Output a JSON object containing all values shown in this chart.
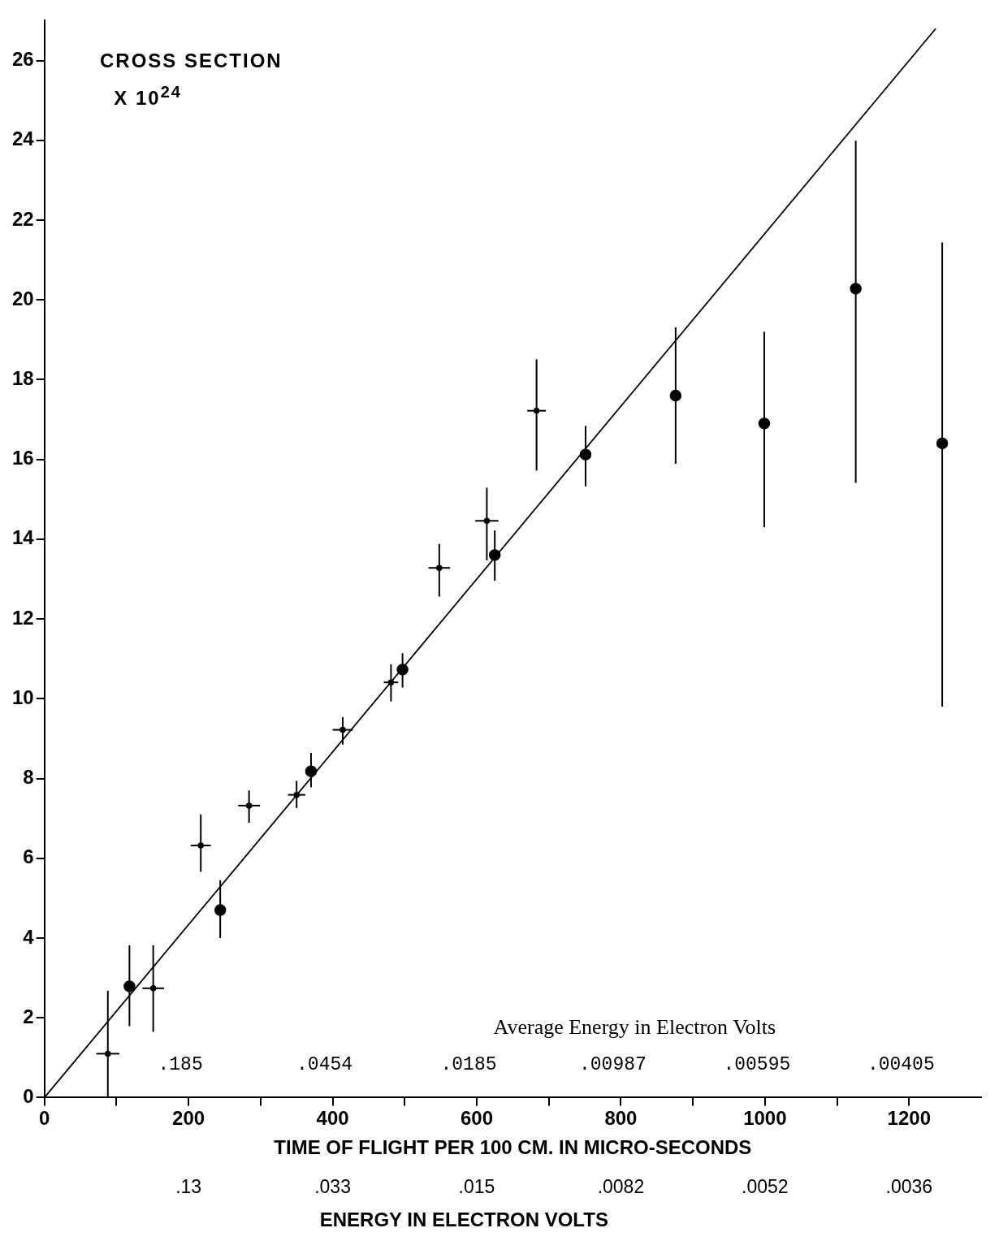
{
  "chart_data": {
    "type": "scatter",
    "ylabel": "CROSS SECTION X 10$^{24}$",
    "xlabel": "TIME OF FLIGHT PER 100 CM. IN MICRO-SECONDS",
    "annotations": [
      "Average Energy in Electron Volts",
      ".185 .0454 .0185 .00987 .00595 .00405",
      ".13 .033 .015 .0082 .0052 .0036",
      "ENERGY IN ELECTRON VOLTS"
    ],
    "xlim": [
      0,
      1300
    ],
    "xticks": [
      0,
      {
        "value": 100,
        "label": null
      },
      200,
      {
        "value": 300,
        "label": null
      },
      400,
      {
        "value": 500,
        "label": null
      },
      600,
      {
        "value": 700,
        "label": null
      },
      800,
      {
        "value": 900,
        "label": null
      },
      1000,
      {
        "value": 1100,
        "label": null
      },
      1200
    ],
    "ylim": [
      0,
      27
    ],
    "yticks": [
      0,
      2,
      4,
      6,
      8,
      10,
      12,
      14,
      16,
      18,
      20,
      22,
      24,
      26
    ],
    "grid": false,
    "legend": false,
    "series": [
      {
        "color": "#000000",
        "marker": "circle",
        "x": [
          118,
          244,
          370,
          497,
          625,
          751,
          876,
          999,
          1126,
          1246
        ],
        "values": [
          2.79,
          4.7,
          8.18,
          10.73,
          13.6,
          16.12,
          17.6,
          16.9,
          20.28,
          16.4
        ],
        "errors": [
          [
            1.79,
            3.82
          ],
          [
            4.0,
            5.45
          ],
          [
            7.78,
            8.64
          ],
          [
            10.28,
            11.14
          ],
          [
            12.96,
            14.22
          ],
          [
            15.32,
            16.84
          ],
          [
            15.89,
            19.31
          ],
          [
            14.3,
            19.2
          ],
          [
            15.41,
            23.99
          ],
          [
            9.8,
            21.44
          ]
        ]
      },
      {
        "color": "#000000",
        "marker": "circle",
        "x": [
          88,
          151,
          217,
          284,
          350,
          414,
          481,
          548,
          614,
          683
        ],
        "values": [
          1.1,
          2.74,
          6.32,
          7.32,
          7.59,
          9.22,
          10.41,
          13.28,
          14.46,
          17.22
        ],
        "xerrors": [
          16,
          15,
          14,
          15,
          12,
          14,
          10,
          15,
          16,
          13
        ],
        "errors": [
          [
            0,
            2.68
          ],
          [
            1.65,
            3.82
          ],
          [
            5.66,
            7.1
          ],
          [
            6.89,
            7.7
          ],
          [
            7.26,
            7.94
          ],
          [
            8.85,
            9.54
          ],
          [
            9.93,
            10.86
          ],
          [
            12.56,
            13.88
          ],
          [
            13.47,
            15.29
          ],
          [
            15.72,
            18.51
          ]
        ]
      },
      {
        "type": "line",
        "color": "#000000",
        "marker": "none",
        "line_style": "solid",
        "x": [
          0,
          1237
        ],
        "values": [
          0,
          26.8
        ]
      }
    ]
  }
}
